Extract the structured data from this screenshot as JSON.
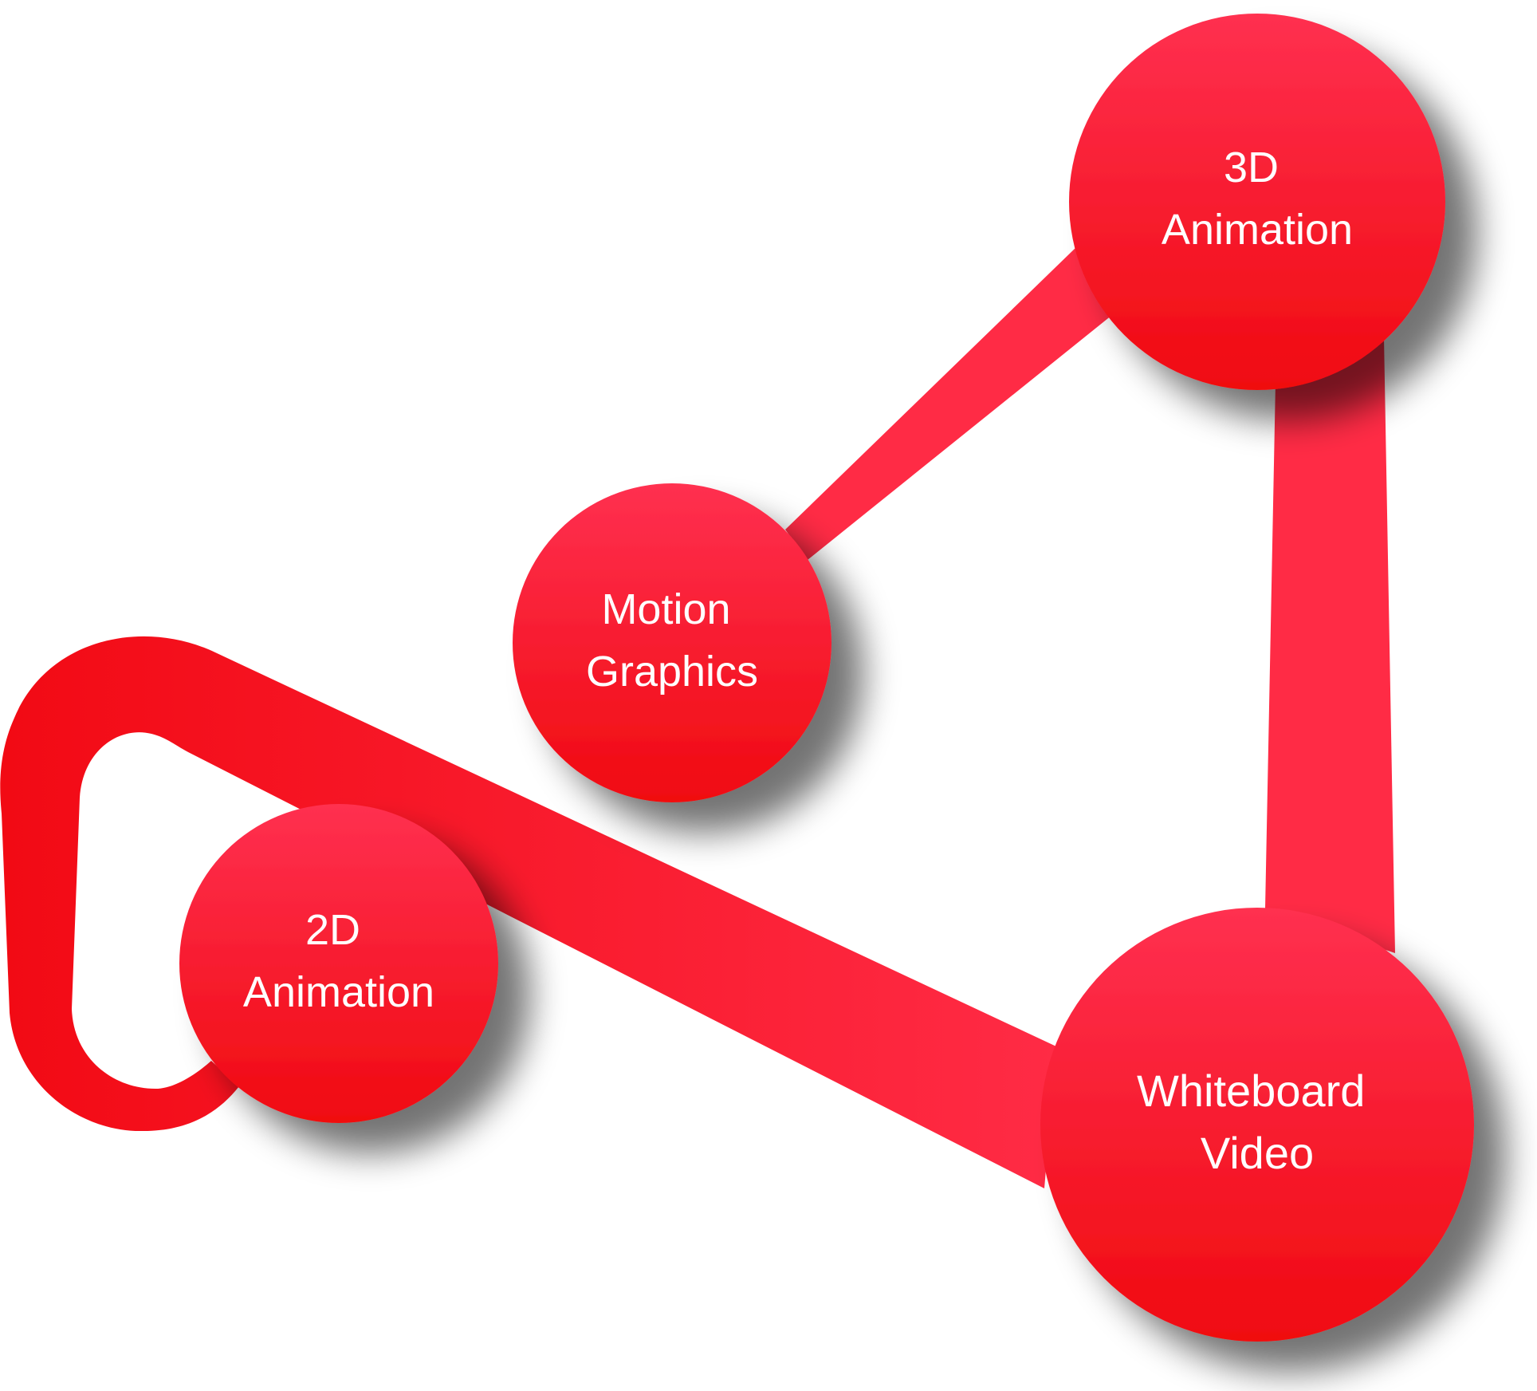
{
  "nodes": [
    {
      "id": "3d-animation",
      "lines": [
        "3D",
        "Animation"
      ]
    },
    {
      "id": "motion-graphics",
      "lines": [
        "Motion",
        "Graphics"
      ]
    },
    {
      "id": "2d-animation",
      "lines": [
        "2D",
        "Animation"
      ]
    },
    {
      "id": "whiteboard-video",
      "lines": [
        "Whiteboard",
        "Video"
      ]
    }
  ],
  "links": [
    {
      "from": "motion-graphics",
      "to": "3d-animation"
    },
    {
      "from": "3d-animation",
      "to": "whiteboard-video"
    },
    {
      "from": "2d-animation",
      "to": "whiteboard-video"
    }
  ],
  "colors": {
    "node_top": "#ff3050",
    "node_bottom": "#f00a10",
    "link": "#ff2b45",
    "link_dark": "#f2111e",
    "label": "#ffffff",
    "background": "#ffffff"
  }
}
